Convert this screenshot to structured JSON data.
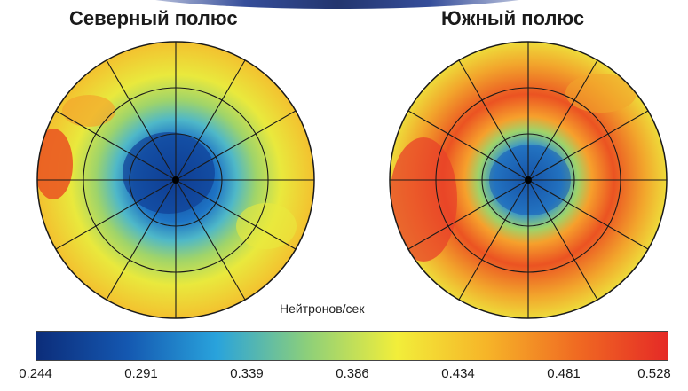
{
  "titles": {
    "north": "Северный полюс",
    "south": "Южный полюс"
  },
  "colorbar": {
    "label": "Нейтронов/сек",
    "ticks": [
      "0.244",
      "0.291",
      "0.339",
      "0.386",
      "0.434",
      "0.481",
      "0.528"
    ],
    "colors": [
      "#0c2d7a",
      "#1457b0",
      "#29a3dc",
      "#8ccf7a",
      "#f2ee3a",
      "#f6b428",
      "#f06a22",
      "#e52a26"
    ]
  },
  "maps": {
    "north": {
      "ring_colors": [
        "#0d3a8c",
        "#1e73c4",
        "#4fb8c8",
        "#9fd46a",
        "#e9e93d",
        "#f3c12f"
      ]
    },
    "south": {
      "ring_colors": [
        "#0e3f95",
        "#2f8fd1",
        "#9ed36a",
        "#f6a02c",
        "#eb5322",
        "#f2a52c",
        "#eedb3a"
      ]
    }
  }
}
